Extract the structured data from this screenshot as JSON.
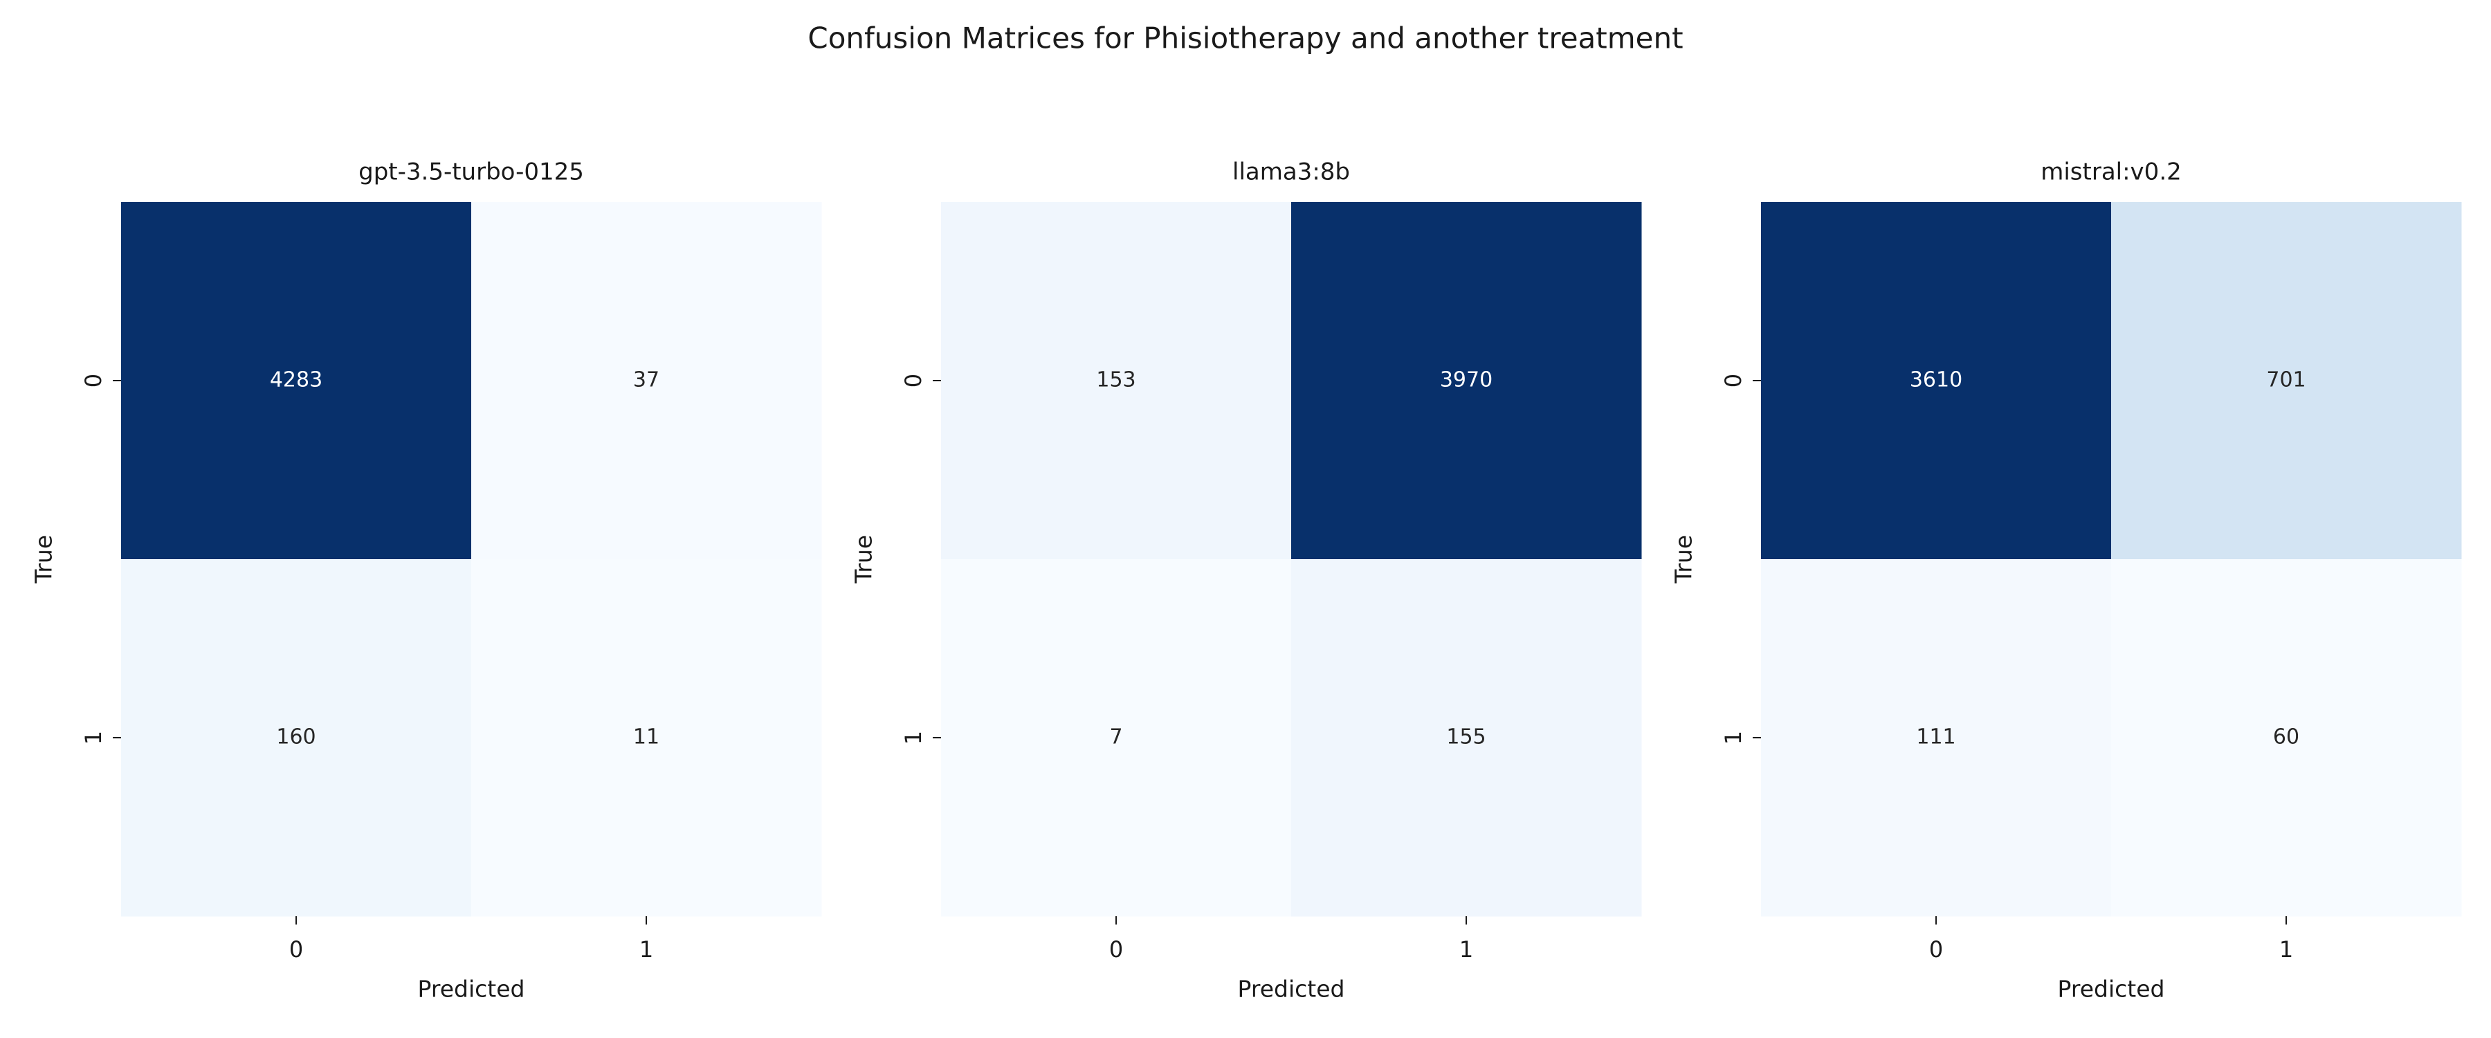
{
  "title": "Confusion Matrices for Phisiotherapy and another treatment",
  "chart_data": [
    {
      "type": "heatmap",
      "title": "gpt-3.5-turbo-0125",
      "xlabel": "Predicted",
      "ylabel": "True",
      "x_ticks": [
        "0",
        "1"
      ],
      "y_ticks": [
        "0",
        "1"
      ],
      "values": [
        [
          4283,
          37
        ],
        [
          160,
          11
        ]
      ],
      "colormap": "Blues",
      "grid": false
    },
    {
      "type": "heatmap",
      "title": "llama3:8b",
      "xlabel": "Predicted",
      "ylabel": "True",
      "x_ticks": [
        "0",
        "1"
      ],
      "y_ticks": [
        "0",
        "1"
      ],
      "values": [
        [
          153,
          3970
        ],
        [
          7,
          155
        ]
      ],
      "colormap": "Blues",
      "grid": false
    },
    {
      "type": "heatmap",
      "title": "mistral:v0.2",
      "xlabel": "Predicted",
      "ylabel": "True",
      "x_ticks": [
        "0",
        "1"
      ],
      "y_ticks": [
        "0",
        "1"
      ],
      "values": [
        [
          3610,
          701
        ],
        [
          111,
          60
        ]
      ],
      "colormap": "Blues",
      "grid": false
    }
  ]
}
